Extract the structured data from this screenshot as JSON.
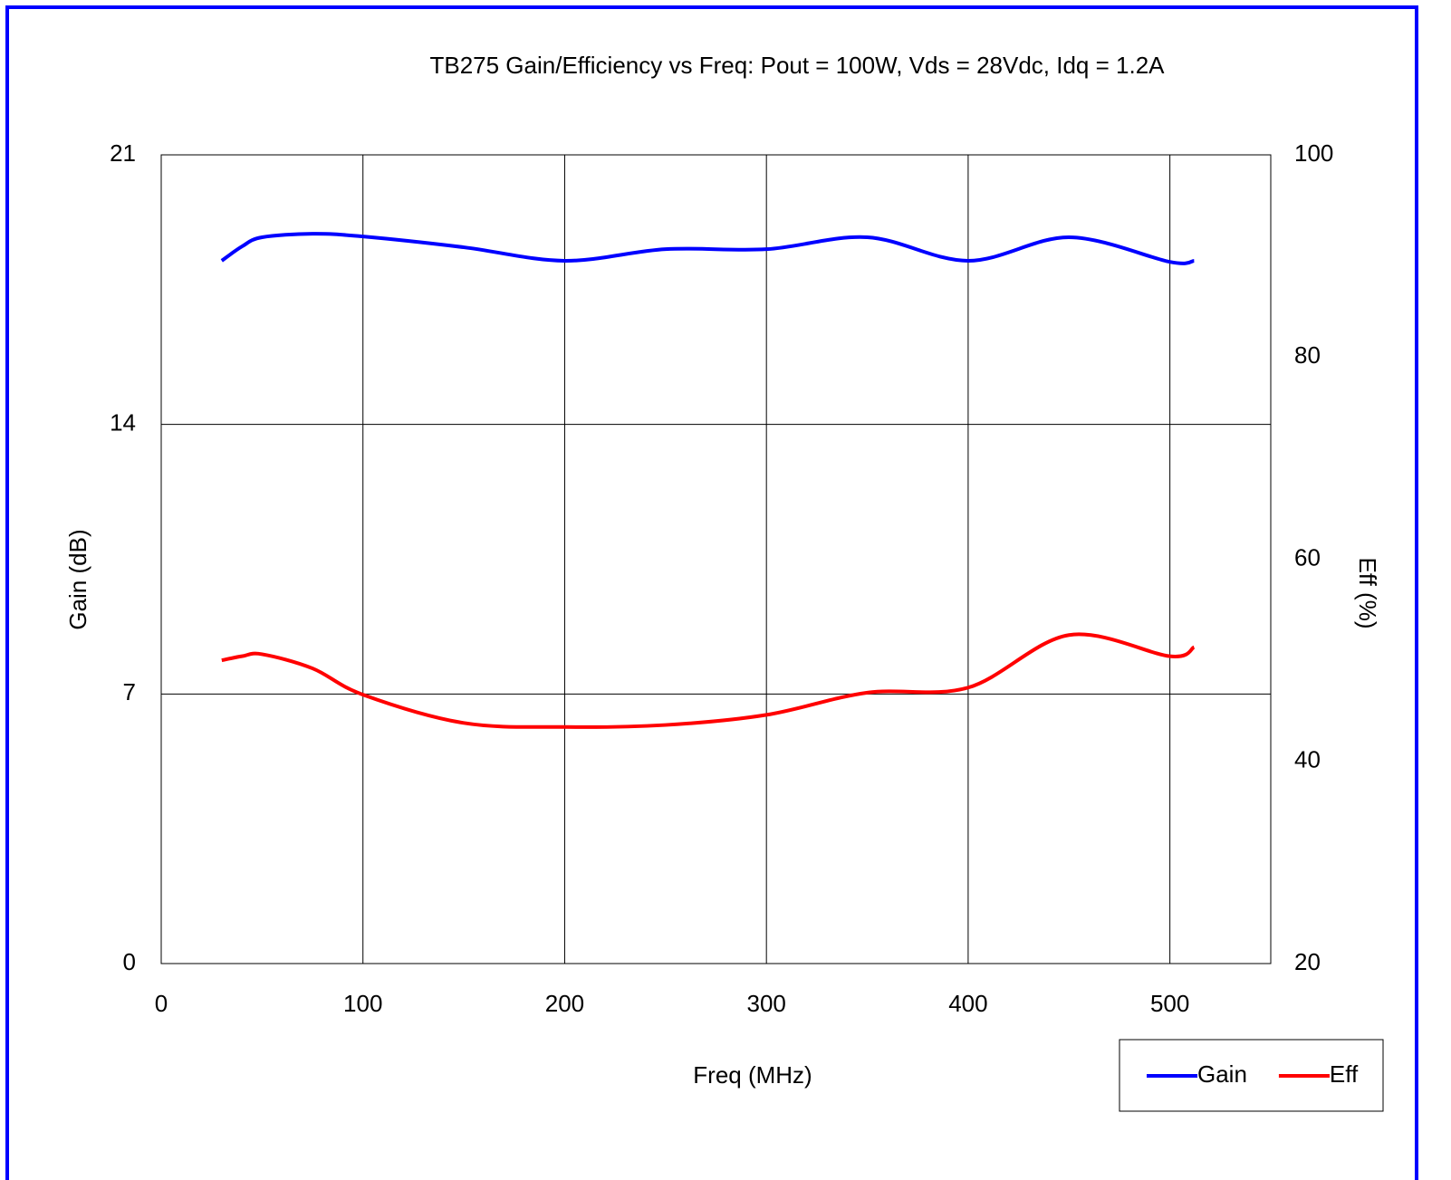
{
  "chart_data": {
    "type": "line",
    "title": "TB275 Gain/Efficiency vs Freq: Pout = 100W, Vds = 28Vdc, Idq = 1.2A",
    "x_label": "Freq (MHz)",
    "y_label": "Gain (dB)",
    "y2_label": "Eff (%)",
    "x": [
      30,
      40,
      50,
      75,
      100,
      150,
      200,
      250,
      300,
      350,
      400,
      450,
      500,
      512
    ],
    "xlim": [
      0,
      550
    ],
    "xticks": [
      0,
      100,
      200,
      300,
      400,
      500
    ],
    "ylim": [
      0,
      21
    ],
    "yticks": [
      0,
      7,
      14,
      21
    ],
    "y2lim": [
      20,
      100
    ],
    "y2ticks": [
      20,
      40,
      60,
      80,
      100
    ],
    "grid": true,
    "legend": "bottom-right",
    "series": [
      {
        "name": "Gain",
        "color": "#0000ff",
        "values": [
          18.25,
          18.62,
          18.86,
          18.95,
          18.88,
          18.6,
          18.25,
          18.55,
          18.55,
          18.86,
          18.25,
          18.86,
          18.22,
          18.25
        ]
      },
      {
        "name": "Eff",
        "color": "#ff0000",
        "axis": "y2",
        "values": [
          50.0,
          50.4,
          50.6,
          49.2,
          46.6,
          43.8,
          43.4,
          43.6,
          44.6,
          46.8,
          47.3,
          52.5,
          50.4,
          51.3
        ]
      }
    ]
  }
}
